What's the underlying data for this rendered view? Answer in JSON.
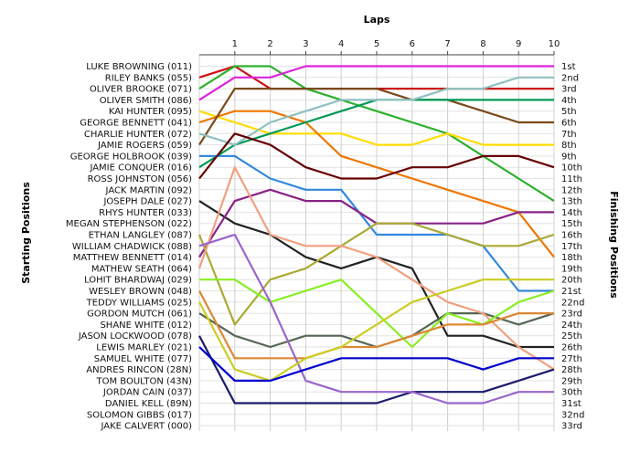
{
  "chart_data": {
    "type": "line",
    "title": "",
    "xlabel": "Laps",
    "ylabel_left": "Starting Positions",
    "ylabel_right": "Finishing Positions",
    "x": [
      0,
      1,
      2,
      3,
      4,
      5,
      6,
      7,
      8,
      9,
      10
    ],
    "laps_ticks": [
      "1",
      "2",
      "3",
      "4",
      "5",
      "6",
      "7",
      "8",
      "9",
      "10"
    ],
    "grid": true,
    "starting_names": [
      "LUKE BROWNING (011)",
      "RILEY BANKS (055)",
      "OLIVER BROOKE (071)",
      "OLIVER SMITH (086)",
      "KAI HUNTER (095)",
      "GEORGE BENNETT (041)",
      "CHARLIE HUNTER (072)",
      "JAMIE ROGERS (059)",
      "GEORGE HOLBROOK (039)",
      "JAMIE CONQUER (016)",
      "ROSS JOHNSTON (056)",
      "JACK MARTIN (092)",
      "JOSEPH DALE (027)",
      "RHYS HUNTER (033)",
      "MEGAN STEPHENSON (022)",
      "ETHAN LANGLEY (087)",
      "WILLIAM CHADWICK (088)",
      "MATTHEW BENNETT (014)",
      "MATHEW SEATH (064)",
      "LOHIT BHARDWAJ (029)",
      "WESLEY BROWN (048)",
      "TEDDY WILLIAMS (025)",
      "GORDON MUTCH (061)",
      "SHANE WHITE (012)",
      "JASON LOCKWOOD (078)",
      "LEWIS MARLEY (021)",
      "SAMUEL WHITE (077)",
      "ANDRES RINCON (28N)",
      "TOM BOULTON (43N)",
      "JORDAN CAIN (037)",
      "DANIEL KELL (89N)",
      "SOLOMON GIBBS (017)",
      "JAKE CALVERT (000)"
    ],
    "finishing_labels": [
      "1st",
      "2nd",
      "3rd",
      "4th",
      "5th",
      "6th",
      "7th",
      "8th",
      "9th",
      "10th",
      "11th",
      "12th",
      "13th",
      "14th",
      "15th",
      "16th",
      "17th",
      "18th",
      "19th",
      "20th",
      "21st",
      "22nd",
      "23rd",
      "24th",
      "25th",
      "26th",
      "27th",
      "28th",
      "29th",
      "30th",
      "31st",
      "32nd",
      "33rd"
    ],
    "series": [
      {
        "color": "#cc1111",
        "values": [
          2,
          1,
          3,
          3,
          3,
          3,
          3,
          3,
          3,
          3,
          3
        ]
      },
      {
        "color": "#2db02d",
        "values": [
          3,
          1,
          1,
          3,
          4,
          5,
          6,
          7,
          9,
          11,
          13
        ]
      },
      {
        "color": "#dd22dd",
        "values": [
          4,
          2,
          2,
          1,
          1,
          1,
          1,
          1,
          1,
          1,
          1
        ]
      },
      {
        "color": "#ffdd00",
        "values": [
          5,
          6,
          7,
          7,
          7,
          8,
          8,
          7,
          8,
          8,
          8
        ]
      },
      {
        "color": "#ee7700",
        "values": [
          6,
          5,
          5,
          6,
          9,
          10,
          11,
          12,
          13,
          14,
          18
        ]
      },
      {
        "color": "#7a4a1a",
        "values": [
          8,
          3,
          3,
          3,
          3,
          3,
          4,
          4,
          5,
          6,
          6
        ]
      },
      {
        "color": "#009955",
        "values": [
          10,
          8,
          7,
          6,
          5,
          4,
          4,
          4,
          4,
          4,
          4
        ]
      },
      {
        "color": "#3388dd",
        "values": [
          9,
          9,
          11,
          12,
          12,
          16,
          16,
          16,
          17,
          21,
          21
        ]
      },
      {
        "color": "#90c0c0",
        "values": [
          7,
          8,
          6,
          5,
          4,
          4,
          4,
          3,
          3,
          2,
          2
        ]
      },
      {
        "color": "#660000",
        "values": [
          11,
          7,
          8,
          10,
          11,
          11,
          10,
          10,
          9,
          9,
          10
        ]
      },
      {
        "color": "#222222",
        "values": [
          13,
          15,
          16,
          18,
          19,
          18,
          19,
          25,
          25,
          26,
          26
        ]
      },
      {
        "color": "#882288",
        "values": [
          18,
          13,
          12,
          13,
          13,
          15,
          15,
          15,
          15,
          14,
          14
        ]
      },
      {
        "color": "#aaaa33",
        "values": [
          16,
          24,
          20,
          19,
          17,
          15,
          15,
          16,
          17,
          17,
          16
        ]
      },
      {
        "color": "#556655",
        "values": [
          23,
          25,
          26,
          25,
          25,
          26,
          25,
          23,
          23,
          24,
          23
        ]
      },
      {
        "color": "#f0a080",
        "values": [
          19,
          10,
          16,
          17,
          17,
          18,
          20,
          22,
          23,
          26,
          28
        ]
      },
      {
        "color": "#88ee22",
        "values": [
          20,
          20,
          22,
          21,
          20,
          23,
          26,
          23,
          24,
          22,
          21
        ]
      },
      {
        "color": "#dd8833",
        "values": [
          21,
          27,
          27,
          27,
          26,
          26,
          25,
          24,
          24,
          23,
          23
        ]
      },
      {
        "color": "#1b1b6b",
        "values": [
          25,
          31,
          31,
          31,
          31,
          31,
          30,
          30,
          30,
          29,
          28
        ]
      },
      {
        "color": "#9966cc",
        "values": [
          17,
          16,
          22,
          29,
          30,
          30,
          30,
          31,
          31,
          30,
          30
        ]
      },
      {
        "color": "#cccc22",
        "values": [
          22,
          28,
          29,
          27,
          26,
          24,
          22,
          21,
          20,
          20,
          20
        ]
      },
      {
        "color": "#0000cc",
        "values": [
          26,
          29,
          29,
          28,
          27,
          27,
          27,
          27,
          28,
          27,
          27
        ]
      }
    ]
  }
}
